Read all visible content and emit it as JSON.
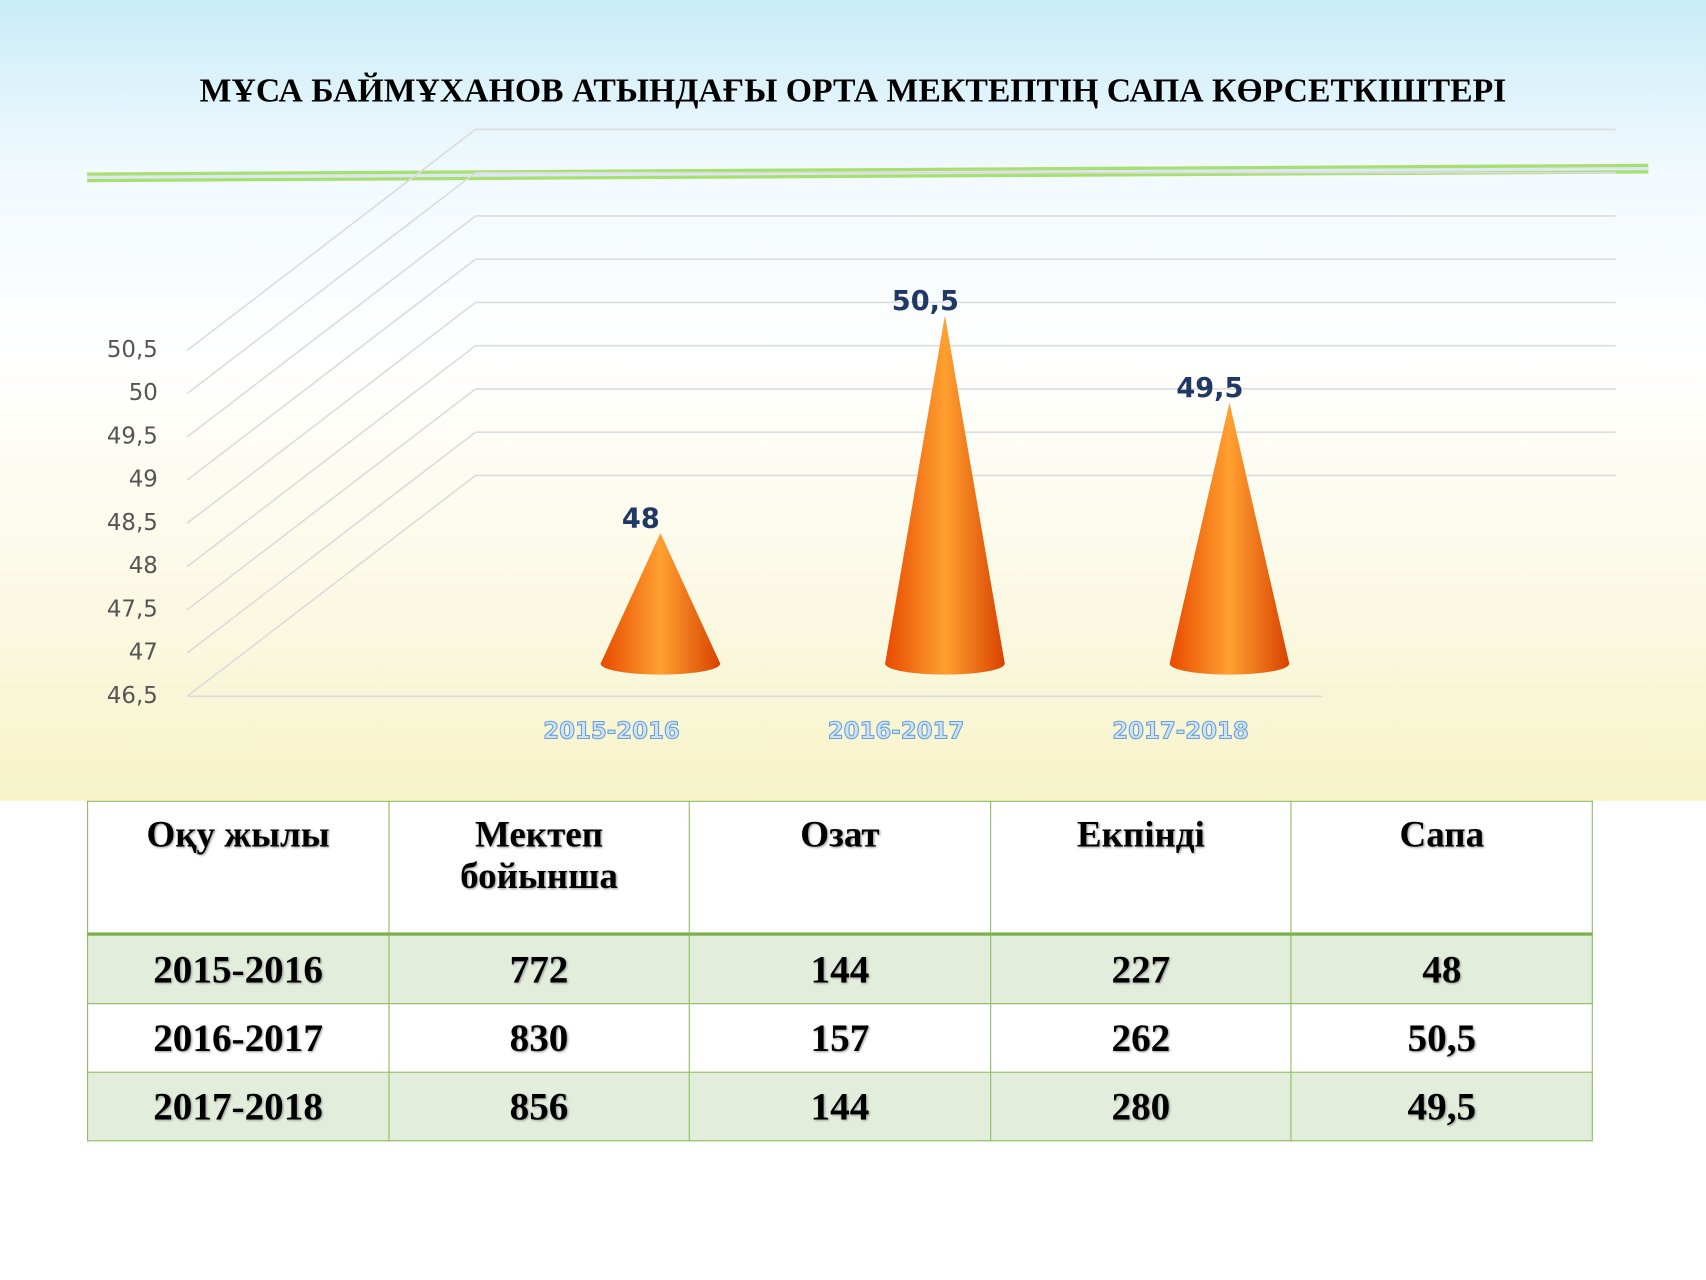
{
  "chart_data": {
    "type": "cone",
    "title": "МҰСА БАЙМҰХАНОВ АТЫНДАҒЫ ОРТА МЕКТЕПТІҢ САПА КӨРСЕТКІШТЕРІ",
    "categories": [
      "2015-2016",
      "2016-2017",
      "2017-2018"
    ],
    "values": [
      48,
      50.5,
      49.5
    ],
    "value_labels": [
      "48",
      "50,5",
      "49,5"
    ],
    "color": "#ff6a00",
    "ylim": [
      46.5,
      50.5
    ],
    "yticks": [
      {
        "value": 46.5,
        "label": "46,5"
      },
      47,
      {
        "value": 47.5,
        "label": "47,5"
      },
      48,
      {
        "value": 48.5,
        "label": "48,5"
      },
      49,
      {
        "value": 49.5,
        "label": "49,5"
      },
      50,
      {
        "value": 50.5,
        "label": "50,5"
      }
    ],
    "grid": true
  },
  "table": {
    "header": [
      "Оқу жылы",
      "Мектеп бойынша",
      "Озат",
      "Екпінді",
      "Сапа"
    ],
    "rows": [
      [
        "2015-2016",
        "772",
        "144",
        "227",
        "48"
      ],
      [
        "2016-2017",
        "830",
        "157",
        "262",
        "50,5"
      ],
      [
        "2017-2018",
        "856",
        "144",
        "280",
        "49,5"
      ]
    ]
  }
}
